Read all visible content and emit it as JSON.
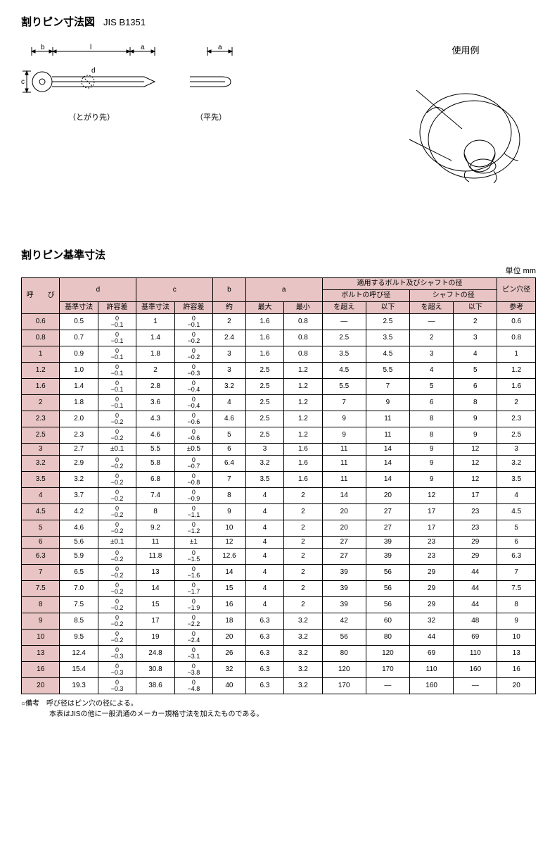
{
  "title": "割りピン寸法図",
  "standard": "JIS B1351",
  "diagram1_label": "（とがり先）",
  "diagram2_label": "（平先）",
  "example_title": "使用例",
  "dim_labels": {
    "b": "b",
    "l": "l",
    "a": "a",
    "c": "c",
    "d": "d"
  },
  "table_title": "割りピン基準寸法",
  "unit": "単位 mm",
  "headers": {
    "yobi": "呼　　び",
    "d": "d",
    "c": "c",
    "b": "b",
    "a": "a",
    "bolt_shaft": "適用するボルト及びシャフトの径",
    "pin_hole": "ピン穴径",
    "bolt_dia": "ボルトの呼び径",
    "shaft_dia": "シャフトの径",
    "kijun": "基準寸法",
    "kyoyo": "許容差",
    "yaku": "約",
    "max": "最大",
    "min": "最小",
    "koe": "を超え",
    "ika": "以下",
    "sanko": "参考"
  },
  "rows": [
    {
      "y": "0.6",
      "d": "0.5",
      "dt": [
        "0",
        "−0.1"
      ],
      "c": "1",
      "ct": [
        "0",
        "−0.1"
      ],
      "b": "2",
      "amax": "1.6",
      "amin": "0.8",
      "bk": "—",
      "bi": "2.5",
      "sk": "—",
      "si": "2",
      "p": "0.6"
    },
    {
      "y": "0.8",
      "d": "0.7",
      "dt": [
        "0",
        "−0.1"
      ],
      "c": "1.4",
      "ct": [
        "0",
        "−0.2"
      ],
      "b": "2.4",
      "amax": "1.6",
      "amin": "0.8",
      "bk": "2.5",
      "bi": "3.5",
      "sk": "2",
      "si": "3",
      "p": "0.8"
    },
    {
      "y": "1",
      "d": "0.9",
      "dt": [
        "0",
        "−0.1"
      ],
      "c": "1.8",
      "ct": [
        "0",
        "−0.2"
      ],
      "b": "3",
      "amax": "1.6",
      "amin": "0.8",
      "bk": "3.5",
      "bi": "4.5",
      "sk": "3",
      "si": "4",
      "p": "1"
    },
    {
      "y": "1.2",
      "d": "1.0",
      "dt": [
        "0",
        "−0.1"
      ],
      "c": "2",
      "ct": [
        "0",
        "−0.3"
      ],
      "b": "3",
      "amax": "2.5",
      "amin": "1.2",
      "bk": "4.5",
      "bi": "5.5",
      "sk": "4",
      "si": "5",
      "p": "1.2"
    },
    {
      "y": "1.6",
      "d": "1.4",
      "dt": [
        "0",
        "−0.1"
      ],
      "c": "2.8",
      "ct": [
        "0",
        "−0.4"
      ],
      "b": "3.2",
      "amax": "2.5",
      "amin": "1.2",
      "bk": "5.5",
      "bi": "7",
      "sk": "5",
      "si": "6",
      "p": "1.6"
    },
    {
      "y": "2",
      "d": "1.8",
      "dt": [
        "0",
        "−0.1"
      ],
      "c": "3.6",
      "ct": [
        "0",
        "−0.4"
      ],
      "b": "4",
      "amax": "2.5",
      "amin": "1.2",
      "bk": "7",
      "bi": "9",
      "sk": "6",
      "si": "8",
      "p": "2"
    },
    {
      "y": "2.3",
      "d": "2.0",
      "dt": [
        "0",
        "−0.2"
      ],
      "c": "4.3",
      "ct": [
        "0",
        "−0.6"
      ],
      "b": "4.6",
      "amax": "2.5",
      "amin": "1.2",
      "bk": "9",
      "bi": "11",
      "sk": "8",
      "si": "9",
      "p": "2.3"
    },
    {
      "y": "2.5",
      "d": "2.3",
      "dt": [
        "0",
        "−0.2"
      ],
      "c": "4.6",
      "ct": [
        "0",
        "−0.6"
      ],
      "b": "5",
      "amax": "2.5",
      "amin": "1.2",
      "bk": "9",
      "bi": "11",
      "sk": "8",
      "si": "9",
      "p": "2.5"
    },
    {
      "y": "3",
      "d": "2.7",
      "dt": [
        "±0.1",
        ""
      ],
      "c": "5.5",
      "ct": [
        "±0.5",
        ""
      ],
      "b": "6",
      "amax": "3",
      "amin": "1.6",
      "bk": "11",
      "bi": "14",
      "sk": "9",
      "si": "12",
      "p": "3"
    },
    {
      "y": "3.2",
      "d": "2.9",
      "dt": [
        "0",
        "−0.2"
      ],
      "c": "5.8",
      "ct": [
        "0",
        "−0.7"
      ],
      "b": "6.4",
      "amax": "3.2",
      "amin": "1.6",
      "bk": "11",
      "bi": "14",
      "sk": "9",
      "si": "12",
      "p": "3.2"
    },
    {
      "y": "3.5",
      "d": "3.2",
      "dt": [
        "0",
        "−0.2"
      ],
      "c": "6.8",
      "ct": [
        "0",
        "−0.8"
      ],
      "b": "7",
      "amax": "3.5",
      "amin": "1.6",
      "bk": "11",
      "bi": "14",
      "sk": "9",
      "si": "12",
      "p": "3.5"
    },
    {
      "y": "4",
      "d": "3.7",
      "dt": [
        "0",
        "−0.2"
      ],
      "c": "7.4",
      "ct": [
        "0",
        "−0.9"
      ],
      "b": "8",
      "amax": "4",
      "amin": "2",
      "bk": "14",
      "bi": "20",
      "sk": "12",
      "si": "17",
      "p": "4"
    },
    {
      "y": "4.5",
      "d": "4.2",
      "dt": [
        "0",
        "−0.2"
      ],
      "c": "8",
      "ct": [
        "0",
        "−1.1"
      ],
      "b": "9",
      "amax": "4",
      "amin": "2",
      "bk": "20",
      "bi": "27",
      "sk": "17",
      "si": "23",
      "p": "4.5"
    },
    {
      "y": "5",
      "d": "4.6",
      "dt": [
        "0",
        "−0.2"
      ],
      "c": "9.2",
      "ct": [
        "0",
        "−1.2"
      ],
      "b": "10",
      "amax": "4",
      "amin": "2",
      "bk": "20",
      "bi": "27",
      "sk": "17",
      "si": "23",
      "p": "5"
    },
    {
      "y": "6",
      "d": "5.6",
      "dt": [
        "±0.1",
        ""
      ],
      "c": "11",
      "ct": [
        "±1",
        ""
      ],
      "b": "12",
      "amax": "4",
      "amin": "2",
      "bk": "27",
      "bi": "39",
      "sk": "23",
      "si": "29",
      "p": "6"
    },
    {
      "y": "6.3",
      "d": "5.9",
      "dt": [
        "0",
        "−0.2"
      ],
      "c": "11.8",
      "ct": [
        "0",
        "−1.5"
      ],
      "b": "12.6",
      "amax": "4",
      "amin": "2",
      "bk": "27",
      "bi": "39",
      "sk": "23",
      "si": "29",
      "p": "6.3"
    },
    {
      "y": "7",
      "d": "6.5",
      "dt": [
        "0",
        "−0.2"
      ],
      "c": "13",
      "ct": [
        "0",
        "−1.6"
      ],
      "b": "14",
      "amax": "4",
      "amin": "2",
      "bk": "39",
      "bi": "56",
      "sk": "29",
      "si": "44",
      "p": "7"
    },
    {
      "y": "7.5",
      "d": "7.0",
      "dt": [
        "0",
        "−0.2"
      ],
      "c": "14",
      "ct": [
        "0",
        "−1.7"
      ],
      "b": "15",
      "amax": "4",
      "amin": "2",
      "bk": "39",
      "bi": "56",
      "sk": "29",
      "si": "44",
      "p": "7.5"
    },
    {
      "y": "8",
      "d": "7.5",
      "dt": [
        "0",
        "−0.2"
      ],
      "c": "15",
      "ct": [
        "0",
        "−1.9"
      ],
      "b": "16",
      "amax": "4",
      "amin": "2",
      "bk": "39",
      "bi": "56",
      "sk": "29",
      "si": "44",
      "p": "8"
    },
    {
      "y": "9",
      "d": "8.5",
      "dt": [
        "0",
        "−0.2"
      ],
      "c": "17",
      "ct": [
        "0",
        "−2.2"
      ],
      "b": "18",
      "amax": "6.3",
      "amin": "3.2",
      "bk": "42",
      "bi": "60",
      "sk": "32",
      "si": "48",
      "p": "9"
    },
    {
      "y": "10",
      "d": "9.5",
      "dt": [
        "0",
        "−0.2"
      ],
      "c": "19",
      "ct": [
        "0",
        "−2.4"
      ],
      "b": "20",
      "amax": "6.3",
      "amin": "3.2",
      "bk": "56",
      "bi": "80",
      "sk": "44",
      "si": "69",
      "p": "10"
    },
    {
      "y": "13",
      "d": "12.4",
      "dt": [
        "0",
        "−0.3"
      ],
      "c": "24.8",
      "ct": [
        "0",
        "−3.1"
      ],
      "b": "26",
      "amax": "6.3",
      "amin": "3.2",
      "bk": "80",
      "bi": "120",
      "sk": "69",
      "si": "110",
      "p": "13"
    },
    {
      "y": "16",
      "d": "15.4",
      "dt": [
        "0",
        "−0.3"
      ],
      "c": "30.8",
      "ct": [
        "0",
        "−3.8"
      ],
      "b": "32",
      "amax": "6.3",
      "amin": "3.2",
      "bk": "120",
      "bi": "170",
      "sk": "110",
      "si": "160",
      "p": "16"
    },
    {
      "y": "20",
      "d": "19.3",
      "dt": [
        "0",
        "−0.3"
      ],
      "c": "38.6",
      "ct": [
        "0",
        "−4.8"
      ],
      "b": "40",
      "amax": "6.3",
      "amin": "3.2",
      "bk": "170",
      "bi": "—",
      "sk": "160",
      "si": "—",
      "p": "20"
    }
  ],
  "notes": [
    "○備考　呼び径はピン穴の径による。",
    "　　　　本表はJISの他に一般流通のメーカー規格寸法を加えたものである。"
  ]
}
